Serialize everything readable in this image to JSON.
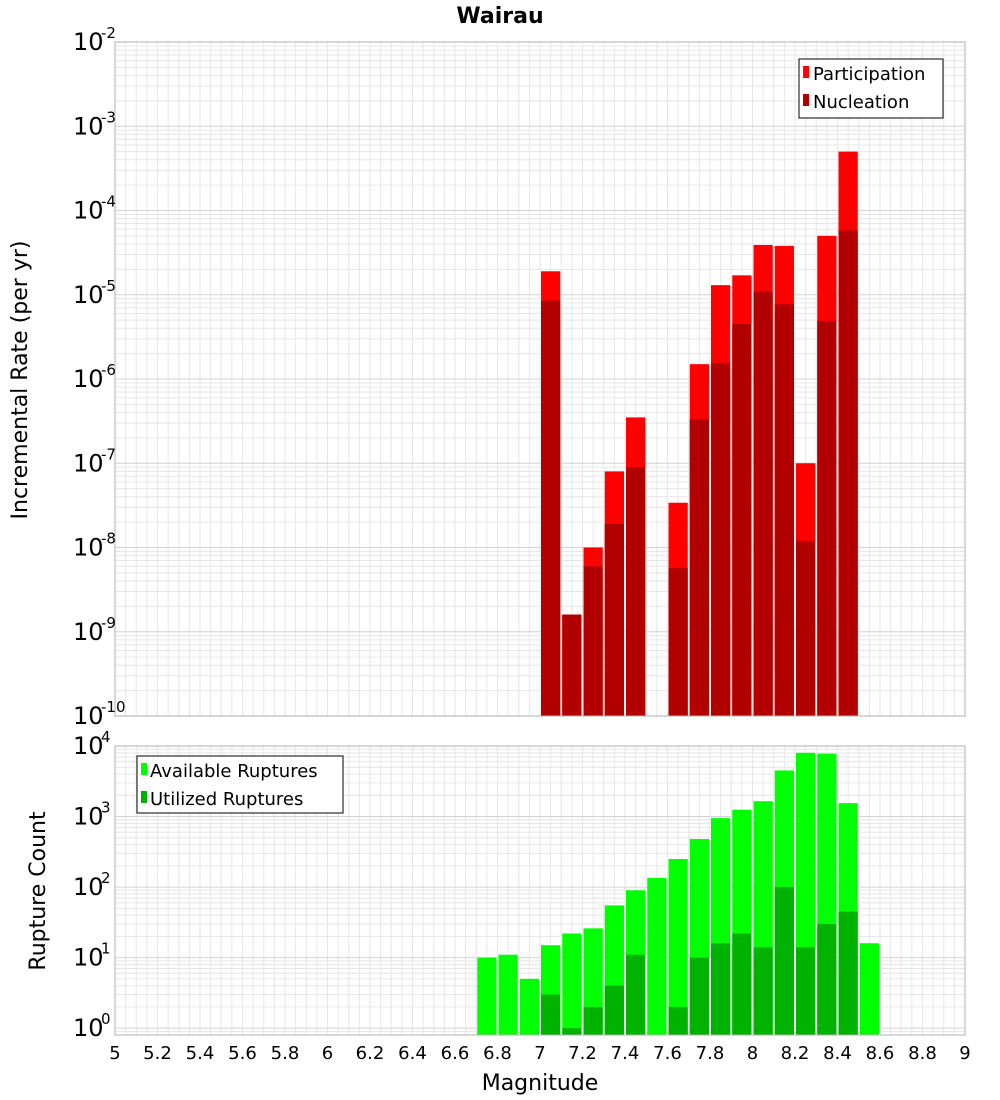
{
  "title": "Wairau",
  "xlabel": "Magnitude",
  "xticks": [
    "5",
    "5.2",
    "5.4",
    "5.6",
    "5.8",
    "6",
    "6.2",
    "6.4",
    "6.6",
    "6.8",
    "7",
    "7.2",
    "7.4",
    "7.6",
    "7.8",
    "8",
    "8.2",
    "8.4",
    "8.6",
    "8.8",
    "9"
  ],
  "colors": {
    "participation": "#ff0000",
    "nucleation": "#b20000",
    "available": "#00ff00",
    "utilized": "#00b200",
    "grid": "#e6e6e6",
    "frame": "#b0b0b0"
  },
  "chart_data": [
    {
      "type": "bar",
      "ylabel": "Incremental Rate (per yr)",
      "yscale": "log",
      "ylim": [
        1e-10,
        0.01
      ],
      "xlim": [
        5,
        9
      ],
      "legend": "top-right",
      "ytick_exponents": [
        "-10",
        "-9",
        "-8",
        "-7",
        "-6",
        "-5",
        "-4",
        "-3",
        "-2"
      ],
      "series": [
        {
          "name": "Participation",
          "points": [
            {
              "x": 7.05,
              "y": 1.9e-05
            },
            {
              "x": 7.15,
              "y": 1.6e-09
            },
            {
              "x": 7.25,
              "y": 1e-08
            },
            {
              "x": 7.35,
              "y": 8e-08
            },
            {
              "x": 7.45,
              "y": 3.5e-07
            },
            {
              "x": 7.65,
              "y": 3.4e-08
            },
            {
              "x": 7.75,
              "y": 1.5e-06
            },
            {
              "x": 7.85,
              "y": 1.3e-05
            },
            {
              "x": 7.95,
              "y": 1.7e-05
            },
            {
              "x": 8.05,
              "y": 3.9e-05
            },
            {
              "x": 8.15,
              "y": 3.8e-05
            },
            {
              "x": 8.25,
              "y": 1e-07
            },
            {
              "x": 8.35,
              "y": 5e-05
            },
            {
              "x": 8.45,
              "y": 0.0005
            }
          ]
        },
        {
          "name": "Nucleation",
          "points": [
            {
              "x": 7.05,
              "y": 8.5e-06
            },
            {
              "x": 7.15,
              "y": 1.6e-09
            },
            {
              "x": 7.25,
              "y": 6e-09
            },
            {
              "x": 7.35,
              "y": 1.9e-08
            },
            {
              "x": 7.45,
              "y": 9e-08
            },
            {
              "x": 7.65,
              "y": 5.7e-09
            },
            {
              "x": 7.75,
              "y": 3.3e-07
            },
            {
              "x": 7.85,
              "y": 1.55e-06
            },
            {
              "x": 7.95,
              "y": 4.5e-06
            },
            {
              "x": 8.05,
              "y": 1.1e-05
            },
            {
              "x": 8.15,
              "y": 7.7e-06
            },
            {
              "x": 8.25,
              "y": 1.2e-08
            },
            {
              "x": 8.35,
              "y": 4.9e-06
            },
            {
              "x": 8.45,
              "y": 5.8e-05
            }
          ]
        }
      ]
    },
    {
      "type": "bar",
      "ylabel": "Rupture Count",
      "yscale": "log",
      "ylim": [
        0.8,
        10000
      ],
      "xlim": [
        5,
        9
      ],
      "legend": "top-left",
      "ytick_exponents": [
        "0",
        "1",
        "2",
        "3",
        "4"
      ],
      "series": [
        {
          "name": "Available Ruptures",
          "points": [
            {
              "x": 6.75,
              "y": 10
            },
            {
              "x": 6.85,
              "y": 11
            },
            {
              "x": 6.95,
              "y": 5
            },
            {
              "x": 7.05,
              "y": 15
            },
            {
              "x": 7.15,
              "y": 22
            },
            {
              "x": 7.25,
              "y": 26
            },
            {
              "x": 7.35,
              "y": 55
            },
            {
              "x": 7.45,
              "y": 90
            },
            {
              "x": 7.55,
              "y": 135
            },
            {
              "x": 7.65,
              "y": 250
            },
            {
              "x": 7.75,
              "y": 480
            },
            {
              "x": 7.85,
              "y": 950
            },
            {
              "x": 7.95,
              "y": 1250
            },
            {
              "x": 8.05,
              "y": 1650
            },
            {
              "x": 8.15,
              "y": 4500
            },
            {
              "x": 8.25,
              "y": 8000
            },
            {
              "x": 8.35,
              "y": 7800
            },
            {
              "x": 8.45,
              "y": 1550
            },
            {
              "x": 8.55,
              "y": 16
            }
          ]
        },
        {
          "name": "Utilized Ruptures",
          "points": [
            {
              "x": 7.05,
              "y": 3
            },
            {
              "x": 7.15,
              "y": 1
            },
            {
              "x": 7.25,
              "y": 2
            },
            {
              "x": 7.35,
              "y": 4
            },
            {
              "x": 7.45,
              "y": 11
            },
            {
              "x": 7.65,
              "y": 2
            },
            {
              "x": 7.75,
              "y": 10
            },
            {
              "x": 7.85,
              "y": 16
            },
            {
              "x": 7.95,
              "y": 22
            },
            {
              "x": 8.05,
              "y": 14
            },
            {
              "x": 8.15,
              "y": 100
            },
            {
              "x": 8.25,
              "y": 14
            },
            {
              "x": 8.35,
              "y": 30
            },
            {
              "x": 8.45,
              "y": 45
            }
          ]
        }
      ]
    }
  ]
}
